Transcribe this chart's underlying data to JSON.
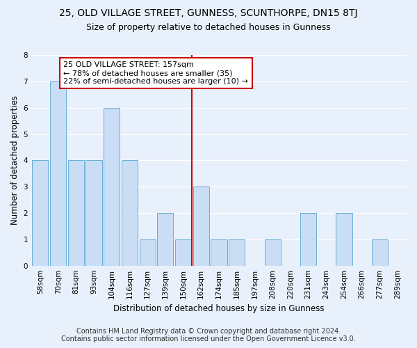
{
  "title": "25, OLD VILLAGE STREET, GUNNESS, SCUNTHORPE, DN15 8TJ",
  "subtitle": "Size of property relative to detached houses in Gunness",
  "xlabel": "Distribution of detached houses by size in Gunness",
  "ylabel": "Number of detached properties",
  "categories": [
    "58sqm",
    "70sqm",
    "81sqm",
    "93sqm",
    "104sqm",
    "116sqm",
    "127sqm",
    "139sqm",
    "150sqm",
    "162sqm",
    "174sqm",
    "185sqm",
    "197sqm",
    "208sqm",
    "220sqm",
    "231sqm",
    "243sqm",
    "254sqm",
    "266sqm",
    "277sqm",
    "289sqm"
  ],
  "values": [
    4,
    7,
    4,
    4,
    6,
    4,
    1,
    2,
    1,
    3,
    1,
    1,
    0,
    1,
    0,
    2,
    0,
    2,
    0,
    1,
    0
  ],
  "bar_color": "#c9ddf5",
  "bar_edge_color": "#6baed6",
  "ylim": [
    0,
    8
  ],
  "yticks": [
    0,
    1,
    2,
    3,
    4,
    5,
    6,
    7,
    8
  ],
  "property_line_x": 8.5,
  "property_line_color": "#cc0000",
  "annotation_text": "25 OLD VILLAGE STREET: 157sqm\n← 78% of detached houses are smaller (35)\n22% of semi-detached houses are larger (10) →",
  "annotation_box_color": "#ffffff",
  "annotation_box_edge_color": "#cc0000",
  "footer_line1": "Contains HM Land Registry data © Crown copyright and database right 2024.",
  "footer_line2": "Contains public sector information licensed under the Open Government Licence v3.0.",
  "background_color": "#e8f0fb",
  "grid_color": "#ffffff",
  "title_fontsize": 10,
  "subtitle_fontsize": 9,
  "axis_label_fontsize": 8.5,
  "tick_fontsize": 7.5,
  "annotation_fontsize": 8,
  "footer_fontsize": 7
}
